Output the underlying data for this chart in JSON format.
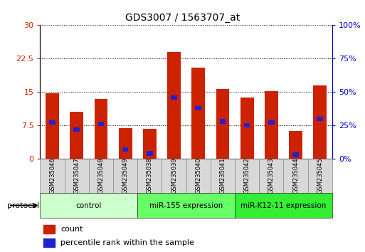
{
  "title": "GDS3007 / 1563707_at",
  "samples": [
    "GSM235046",
    "GSM235047",
    "GSM235048",
    "GSM235049",
    "GSM235038",
    "GSM235039",
    "GSM235040",
    "GSM235041",
    "GSM235042",
    "GSM235043",
    "GSM235044",
    "GSM235045"
  ],
  "count_values": [
    14.7,
    10.5,
    13.5,
    6.8,
    6.7,
    24.0,
    20.5,
    15.7,
    13.8,
    15.2,
    6.2,
    16.5
  ],
  "percentile_values": [
    27,
    22,
    26,
    7,
    4,
    46,
    38,
    28,
    25,
    27,
    3,
    30
  ],
  "left_ylim": [
    0,
    30
  ],
  "right_ylim": [
    0,
    100
  ],
  "left_yticks": [
    0,
    7.5,
    15,
    22.5,
    30
  ],
  "right_yticks": [
    0,
    25,
    50,
    75,
    100
  ],
  "left_ytick_labels": [
    "0",
    "7.5",
    "15",
    "22.5",
    "30"
  ],
  "right_ytick_labels": [
    "0%",
    "25%",
    "50%",
    "75%",
    "100%"
  ],
  "groups": [
    {
      "label": "control",
      "start": 0,
      "end": 4,
      "color": "#ccffcc"
    },
    {
      "label": "miR-155 expression",
      "start": 4,
      "end": 8,
      "color": "#66ff66"
    },
    {
      "label": "miR-K12-11 expression",
      "start": 8,
      "end": 12,
      "color": "#33ee33"
    }
  ],
  "bar_color": "#cc2200",
  "percentile_color": "#2222cc",
  "bar_width": 0.55,
  "pct_bar_width": 0.25,
  "pct_bar_height": 1.0,
  "protocol_label": "protocol"
}
